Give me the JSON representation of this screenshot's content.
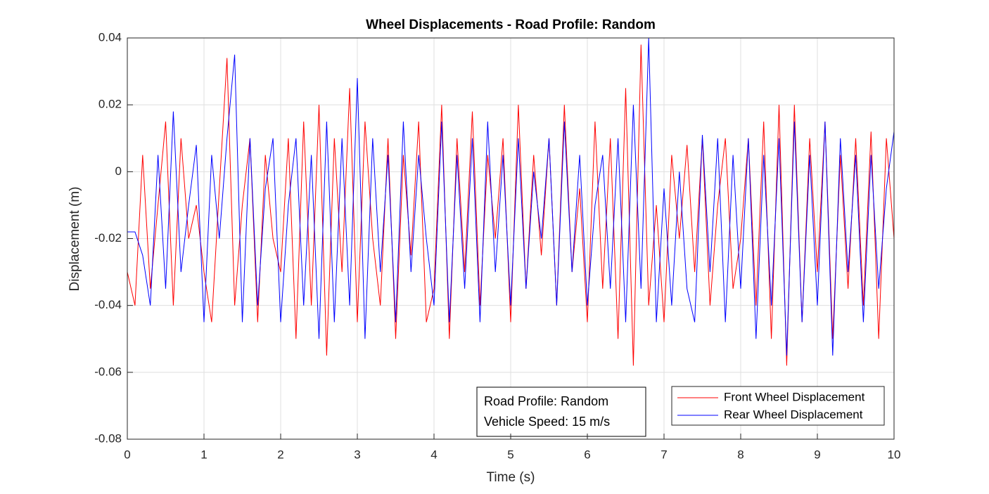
{
  "chart_data": {
    "type": "line",
    "title": "Wheel Displacements - Road Profile: Random",
    "xlabel": "Time (s)",
    "ylabel": "Displacement (m)",
    "x": [
      0,
      0.1,
      0.2,
      0.3,
      0.4,
      0.5,
      0.6,
      0.7,
      0.8,
      0.9,
      1,
      1.1,
      1.2,
      1.3,
      1.4,
      1.5,
      1.6,
      1.7,
      1.8,
      1.9,
      2,
      2.1,
      2.2,
      2.3,
      2.4,
      2.5,
      2.6,
      2.7,
      2.8,
      2.9,
      3,
      3.1,
      3.2,
      3.3,
      3.4,
      3.5,
      3.6,
      3.7,
      3.8,
      3.9,
      4,
      4.1,
      4.2,
      4.3,
      4.4,
      4.5,
      4.6,
      4.7,
      4.8,
      4.9,
      5,
      5.1,
      5.2,
      5.3,
      5.4,
      5.5,
      5.6,
      5.7,
      5.8,
      5.9,
      6,
      6.1,
      6.2,
      6.3,
      6.4,
      6.5,
      6.6,
      6.7,
      6.8,
      6.9,
      7,
      7.1,
      7.2,
      7.3,
      7.4,
      7.5,
      7.6,
      7.7,
      7.8,
      7.9,
      8,
      8.1,
      8.2,
      8.3,
      8.4,
      8.5,
      8.6,
      8.7,
      8.8,
      8.9,
      9,
      9.1,
      9.2,
      9.3,
      9.4,
      9.5,
      9.6,
      9.7,
      9.8,
      9.9,
      10
    ],
    "series": [
      {
        "name": "Front Wheel Displacement",
        "color": "#ff0000",
        "values": [
          -0.03,
          -0.04,
          0.005,
          -0.035,
          -0.01,
          0.015,
          -0.04,
          0.01,
          -0.02,
          -0.01,
          -0.03,
          -0.045,
          -0.005,
          0.034,
          -0.04,
          -0.01,
          0.01,
          -0.045,
          0.005,
          -0.02,
          -0.03,
          0.01,
          -0.05,
          0.015,
          -0.04,
          0.02,
          -0.055,
          0.01,
          -0.03,
          0.025,
          -0.045,
          0.015,
          -0.02,
          -0.04,
          0.01,
          -0.05,
          0.005,
          -0.025,
          0.015,
          -0.045,
          -0.035,
          0.02,
          -0.05,
          0.01,
          -0.03,
          0.018,
          -0.04,
          0.005,
          -0.02,
          0.01,
          -0.045,
          0.02,
          -0.035,
          0.005,
          -0.025,
          0.01,
          -0.04,
          0.02,
          -0.03,
          -0.005,
          -0.045,
          0.015,
          -0.035,
          0.01,
          -0.05,
          0.025,
          -0.058,
          0.038,
          -0.04,
          -0.01,
          -0.045,
          0.005,
          -0.02,
          0.008,
          -0.03,
          0.01,
          -0.04,
          -0.01,
          0.01,
          -0.035,
          -0.02,
          0.01,
          -0.04,
          0.015,
          -0.05,
          0.02,
          -0.058,
          0.02,
          -0.045,
          0.01,
          -0.03,
          0.015,
          -0.05,
          0.005,
          -0.035,
          0.01,
          -0.04,
          0.012,
          -0.05,
          0.01,
          -0.02
        ]
      },
      {
        "name": "Rear Wheel Displacement",
        "color": "#0000ff",
        "values": [
          -0.018,
          -0.018,
          -0.025,
          -0.04,
          0.005,
          -0.035,
          0.018,
          -0.03,
          -0.01,
          0.008,
          -0.045,
          0.005,
          -0.02,
          0.01,
          0.035,
          -0.045,
          0.01,
          -0.04,
          -0.005,
          0.01,
          -0.045,
          -0.01,
          0.01,
          -0.04,
          0.005,
          -0.05,
          0.015,
          -0.045,
          0.01,
          -0.04,
          0.028,
          -0.05,
          0.01,
          -0.03,
          0.005,
          -0.045,
          0.015,
          -0.03,
          0.005,
          -0.02,
          -0.04,
          0.015,
          -0.045,
          0.005,
          -0.035,
          0.01,
          -0.045,
          0.015,
          -0.03,
          0.005,
          -0.04,
          0.01,
          -0.035,
          0,
          -0.02,
          0.01,
          -0.04,
          0.015,
          -0.03,
          0.005,
          -0.04,
          -0.01,
          0.005,
          -0.035,
          0.01,
          -0.045,
          0.02,
          -0.035,
          0.04,
          -0.045,
          -0.005,
          -0.04,
          0,
          -0.035,
          -0.045,
          0.011,
          -0.03,
          0.01,
          -0.045,
          0.005,
          -0.035,
          0.01,
          -0.05,
          0.005,
          -0.04,
          0.01,
          -0.055,
          0.015,
          -0.045,
          0.005,
          -0.04,
          0.015,
          -0.055,
          0.01,
          -0.03,
          0.005,
          -0.045,
          0.005,
          -0.035,
          -0.005,
          0.012
        ]
      }
    ],
    "xlim": [
      0,
      10
    ],
    "xticks": [
      0,
      1,
      2,
      3,
      4,
      5,
      6,
      7,
      8,
      9,
      10
    ],
    "ylim": [
      -0.08,
      0.04
    ],
    "yticks": [
      -0.08,
      -0.06,
      -0.04,
      -0.02,
      0,
      0.02,
      0.04
    ],
    "grid": true,
    "legend": "southeast",
    "annotations": [
      "Road Profile: Random",
      "Vehicle Speed: 15 m/s"
    ]
  }
}
